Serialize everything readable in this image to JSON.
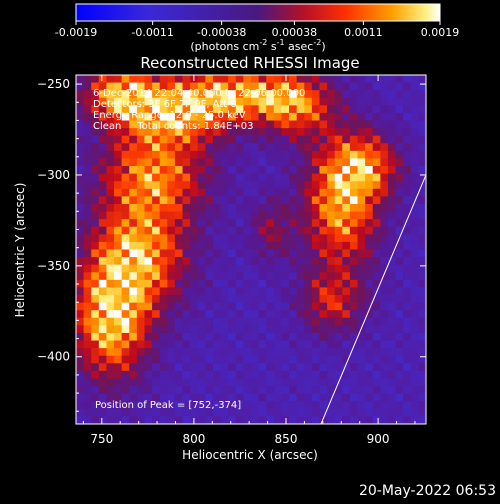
{
  "colorbar": {
    "ticks": [
      "-0.0019",
      "-0.0011",
      "-0.00038",
      "0.00038",
      "0.0011",
      "0.0019"
    ],
    "unit_label": {
      "prefix": "(photons cm",
      "sup1": "-2",
      "mid1": " s",
      "sup2": "-1",
      "mid2": " asec",
      "sup3": "-2",
      "suffix": ")"
    },
    "range": [
      -0.0019,
      0.0019
    ]
  },
  "chart_data": {
    "type": "heatmap",
    "title": "Reconstructed RHESSI Image",
    "xlabel": "Heliocentric X (arcsec)",
    "ylabel": "Heliocentric Y (arcsec)",
    "xlim": [
      736,
      926
    ],
    "ylim": [
      -437,
      -245
    ],
    "x_ticks": [
      {
        "value": 750,
        "label": "750"
      },
      {
        "value": 800,
        "label": "800"
      },
      {
        "value": 850,
        "label": "850"
      },
      {
        "value": 900,
        "label": "900"
      }
    ],
    "y_ticks": [
      {
        "value": -250,
        "label": "−250"
      },
      {
        "value": -300,
        "label": "−300"
      },
      {
        "value": -350,
        "label": "−350"
      },
      {
        "value": -400,
        "label": "−400"
      }
    ],
    "info_lines": [
      "6-Dec-2014 22:04:40.000 to 22:06:00.000",
      "Detectors: 3F 6F 7F 9F, Att 0",
      "Energy Range: 12.0 - 25.0 keV",
      "Clean     Total counts: 1.84E+03"
    ],
    "peak_label": "Position of Peak = [752,-374]",
    "peak": {
      "x": 752,
      "y": -374
    },
    "limb_line": [
      {
        "x": 869,
        "y": -437
      },
      {
        "x": 926,
        "y": -300
      }
    ],
    "blobs": [
      {
        "x": 755,
        "y": -380,
        "sx": 14,
        "sy": 22,
        "a": 1.0
      },
      {
        "x": 770,
        "y": -345,
        "sx": 18,
        "sy": 20,
        "a": 0.85
      },
      {
        "x": 778,
        "y": -300,
        "sx": 20,
        "sy": 18,
        "a": 0.8
      },
      {
        "x": 790,
        "y": -265,
        "sx": 22,
        "sy": 12,
        "a": 0.85
      },
      {
        "x": 760,
        "y": -255,
        "sx": 14,
        "sy": 10,
        "a": 0.8
      },
      {
        "x": 825,
        "y": -255,
        "sx": 22,
        "sy": 10,
        "a": 0.75
      },
      {
        "x": 855,
        "y": -262,
        "sx": 14,
        "sy": 12,
        "a": 0.7
      },
      {
        "x": 880,
        "y": -315,
        "sx": 14,
        "sy": 25,
        "a": 0.9
      },
      {
        "x": 895,
        "y": -295,
        "sx": 12,
        "sy": 12,
        "a": 0.6
      },
      {
        "x": 875,
        "y": -370,
        "sx": 12,
        "sy": 12,
        "a": 0.5
      },
      {
        "x": 842,
        "y": -330,
        "sx": 8,
        "sy": 12,
        "a": 0.35
      }
    ]
  },
  "timestamp": "20-May-2022 06:53"
}
